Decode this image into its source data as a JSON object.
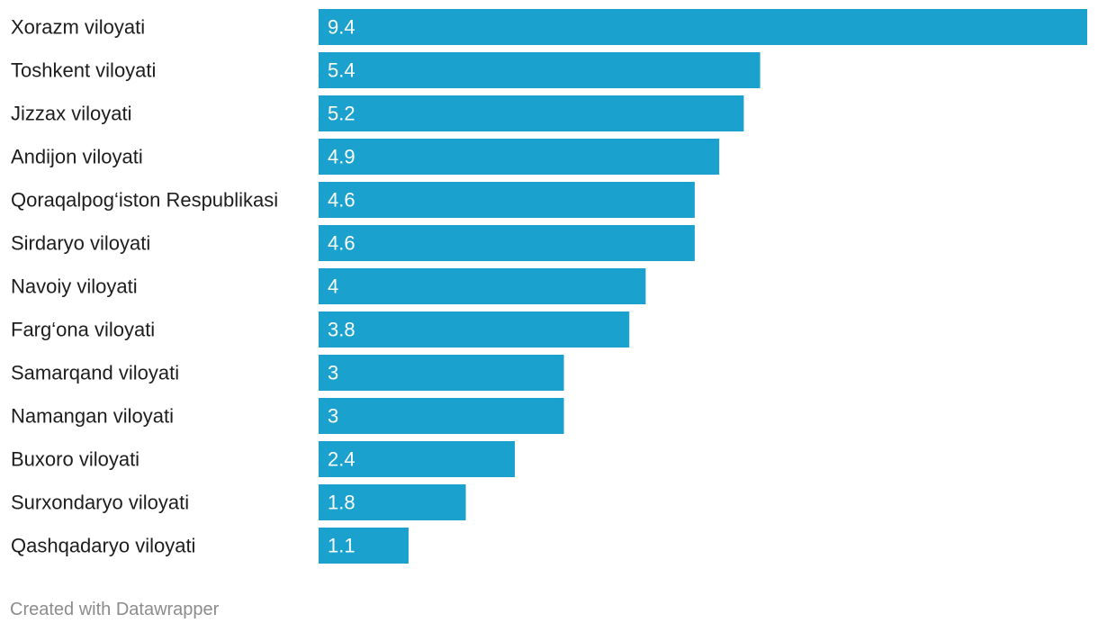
{
  "chart_data": {
    "type": "bar",
    "orientation": "horizontal",
    "categories": [
      "Xorazm viloyati",
      "Toshkent viloyati",
      "Jizzax viloyati",
      "Andijon viloyati",
      "Qoraqalpog‘iston Respublikasi",
      "Sirdaryo viloyati",
      "Navoiy viloyati",
      "Farg‘ona viloyati",
      "Samarqand viloyati",
      "Namangan viloyati",
      "Buxoro viloyati",
      "Surxondaryo viloyati",
      "Qashqadaryo viloyati"
    ],
    "values": [
      9.4,
      5.4,
      5.2,
      4.9,
      4.6,
      4.6,
      4,
      3.8,
      3,
      3,
      2.4,
      1.8,
      1.1
    ],
    "value_labels": [
      "9.4",
      "5.4",
      "5.2",
      "4.9",
      "4.6",
      "4.6",
      "4",
      "3.8",
      "3",
      "3",
      "2.4",
      "1.8",
      "1.1"
    ],
    "bar_color": "#1aa1cd",
    "title": "",
    "xlabel": "",
    "ylabel": "",
    "grid": false,
    "legend": "none"
  },
  "footer": {
    "credit": "Created with Datawrapper"
  }
}
